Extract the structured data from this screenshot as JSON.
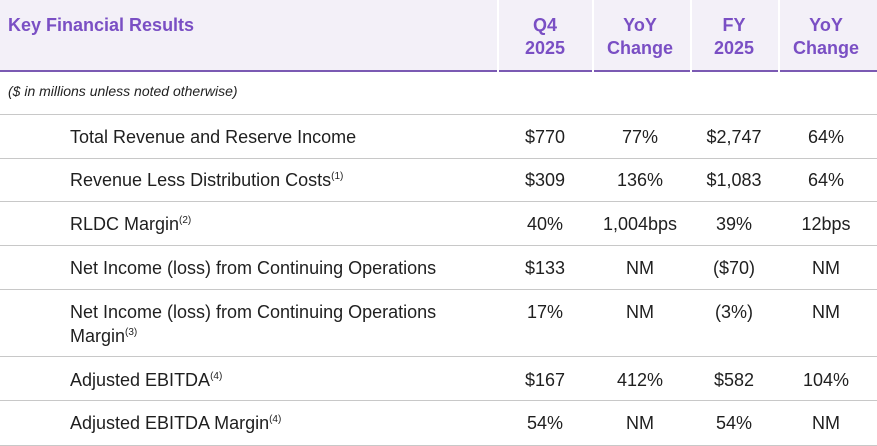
{
  "header": {
    "title": "Key Financial Results",
    "columns": [
      "Q4\n2025",
      "YoY\nChange",
      "FY\n2025",
      "YoY\nChange"
    ]
  },
  "note": "($ in millions unless noted otherwise)",
  "rows": [
    {
      "label": "Total Revenue and Reserve Income",
      "sup": "",
      "label2": "",
      "sup2": "",
      "values": [
        "$770",
        "77%",
        "$2,747",
        "64%"
      ]
    },
    {
      "label": "Revenue Less Distribution Costs",
      "sup": "(1)",
      "label2": "",
      "sup2": "",
      "values": [
        "$309",
        "136%",
        "$1,083",
        "64%"
      ]
    },
    {
      "label": "RLDC Margin",
      "sup": "(2)",
      "label2": "",
      "sup2": "",
      "values": [
        "40%",
        "1,004bps",
        "39%",
        "12bps"
      ]
    },
    {
      "label": "Net Income (loss) from Continuing Operations",
      "sup": "",
      "label2": "",
      "sup2": "",
      "values": [
        "$133",
        "NM",
        "($70)",
        "NM"
      ]
    },
    {
      "label": "Net Income (loss) from Continuing Operations",
      "sup": "",
      "label2": "Margin",
      "sup2": "(3)",
      "values": [
        "17%",
        "NM",
        "(3%)",
        "NM"
      ]
    },
    {
      "label": "Adjusted EBITDA",
      "sup": "(4)",
      "label2": "",
      "sup2": "",
      "values": [
        "$167",
        "412%",
        "$582",
        "104%"
      ]
    },
    {
      "label": "Adjusted EBITDA Margin",
      "sup": "(4)",
      "label2": "",
      "sup2": "",
      "values": [
        "54%",
        "NM",
        "54%",
        "NM"
      ]
    }
  ]
}
